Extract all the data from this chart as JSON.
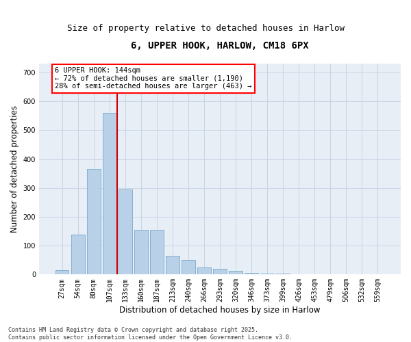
{
  "title": "6, UPPER HOOK, HARLOW, CM18 6PX",
  "subtitle": "Size of property relative to detached houses in Harlow",
  "xlabel": "Distribution of detached houses by size in Harlow",
  "ylabel": "Number of detached properties",
  "categories": [
    "27sqm",
    "54sqm",
    "80sqm",
    "107sqm",
    "133sqm",
    "160sqm",
    "187sqm",
    "213sqm",
    "240sqm",
    "266sqm",
    "293sqm",
    "320sqm",
    "346sqm",
    "373sqm",
    "399sqm",
    "426sqm",
    "453sqm",
    "479sqm",
    "506sqm",
    "532sqm",
    "559sqm"
  ],
  "values": [
    15,
    138,
    365,
    560,
    295,
    155,
    155,
    65,
    50,
    25,
    20,
    12,
    6,
    3,
    2,
    1,
    1,
    0,
    0,
    0,
    0
  ],
  "bar_color": "#b8d0e8",
  "bar_edge_color": "#7aaac8",
  "grid_color": "#c8d4e4",
  "bg_color": "#e8eef6",
  "vline_color": "#cc0000",
  "vline_x_idx": 3.5,
  "annotation_text": "6 UPPER HOOK: 144sqm\n← 72% of detached houses are smaller (1,190)\n28% of semi-detached houses are larger (463) →",
  "ylim_max": 730,
  "yticks": [
    0,
    100,
    200,
    300,
    400,
    500,
    600,
    700
  ],
  "footer": "Contains HM Land Registry data © Crown copyright and database right 2025.\nContains public sector information licensed under the Open Government Licence v3.0.",
  "title_fontsize": 10,
  "subtitle_fontsize": 9,
  "axis_label_fontsize": 8.5,
  "tick_fontsize": 7,
  "ann_fontsize": 7.5,
  "footer_fontsize": 6
}
